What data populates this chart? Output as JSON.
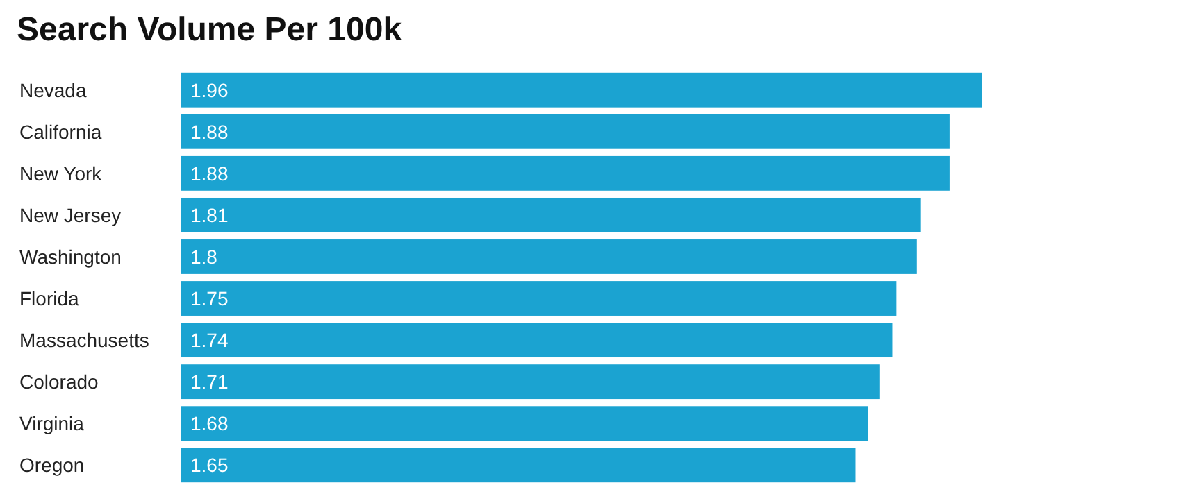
{
  "chart_data": {
    "type": "bar",
    "orientation": "horizontal",
    "title": "Search Volume Per 100k",
    "categories": [
      "Nevada",
      "California",
      "New York",
      "New Jersey",
      "Washington",
      "Florida",
      "Massachusetts",
      "Colorado",
      "Virginia",
      "Oregon"
    ],
    "values": [
      1.96,
      1.88,
      1.88,
      1.81,
      1.8,
      1.75,
      1.74,
      1.71,
      1.68,
      1.65
    ],
    "color": "#1ba3d1",
    "data_labels": true
  }
}
